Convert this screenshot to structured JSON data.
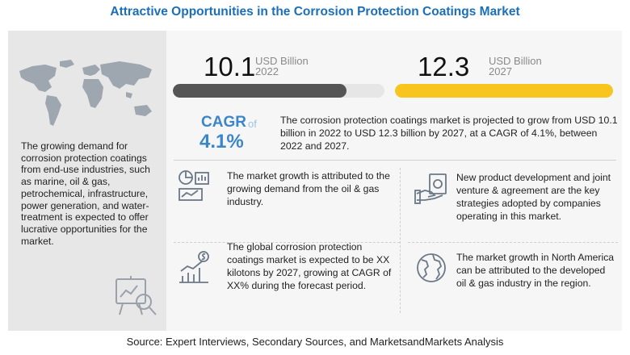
{
  "title": "Attractive Opportunities in the Corrosion Protection Coatings Market",
  "left_text": "The growing demand for corrosion protection coatings from end-use industries, such as marine, oil & gas, petrochemical, infrastructure, power generation, and water-treatment is expected to offer lucrative opportunities for the market.",
  "cagr": {
    "word": "CAGR",
    "of": "of",
    "value": "4.1%"
  },
  "description": "The corrosion protection coatings market is projected to grow from USD 10.1 billion in 2022 to USD 12.3 billion by 2027, at a CAGR of 4.1%, between 2022 and 2027.",
  "insights": [
    {
      "text": "The market growth is attributed to the growing demand from the oil & gas industry."
    },
    {
      "text": "The global corrosion protection coatings market is expected to be XX kilotons by 2027, growing at CAGR of XX% during the forecast period."
    },
    {
      "text": "New product development and joint venture & agreement are the key strategies adopted by companies operating in this market."
    },
    {
      "text": "The market growth in North America can be attributed to the developed oil & gas industry in the region."
    }
  ],
  "source": "Source: Expert Interviews, Secondary Sources, and MarketsandMarkets Analysis",
  "colors": {
    "title": "#1b6fb8",
    "bar2022": "#555555",
    "bar2027": "#f7c51e",
    "accent": "#3a86c9"
  },
  "chart_data": {
    "type": "bar",
    "categories": [
      "2022",
      "2027"
    ],
    "values": [
      10.1,
      12.3
    ],
    "value_labels": [
      "10.1",
      "12.3"
    ],
    "unit": "USD Billion",
    "orientation": "horizontal",
    "xlim": [
      0,
      12.3
    ]
  }
}
